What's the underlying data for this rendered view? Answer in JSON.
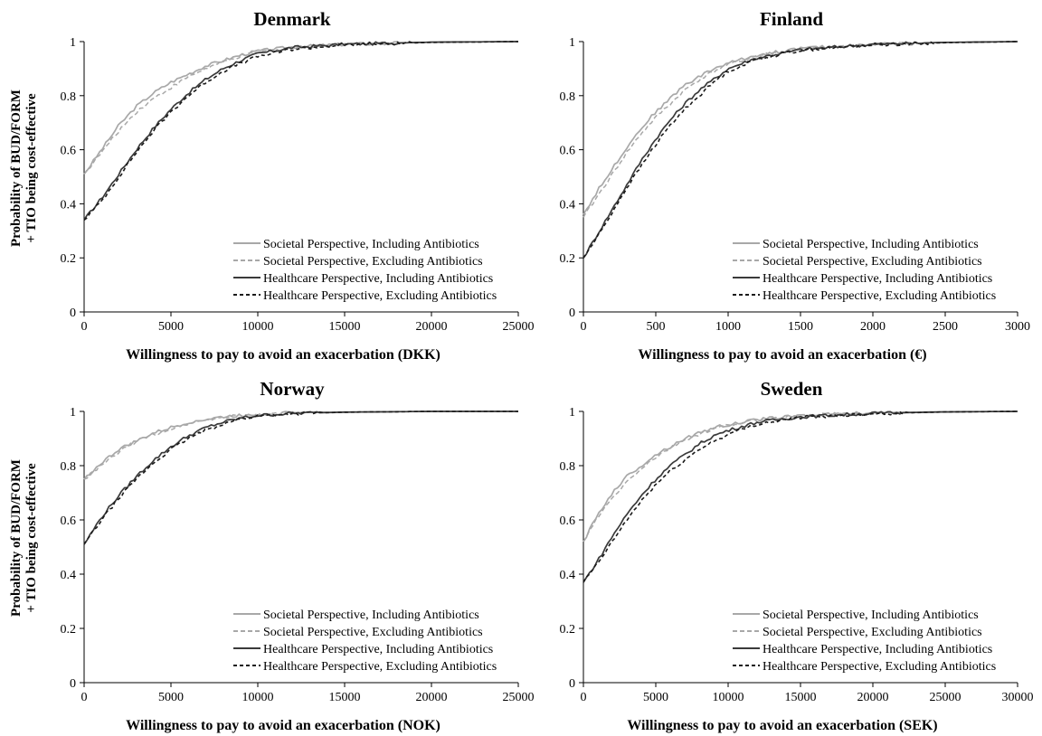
{
  "y_axis_title": {
    "line1": "Probability of BUD/FORM",
    "line2": "+ TIO being cost-effective"
  },
  "legend": [
    {
      "label": "Societal Perspective, Including Antibiotics",
      "color": "#a8a8a8",
      "dashed": false
    },
    {
      "label": "Societal Perspective, Excluding Antibiotics",
      "color": "#a8a8a8",
      "dashed": true
    },
    {
      "label": "Healthcare Perspective, Including Antibiotics",
      "color": "#3a3a3a",
      "dashed": false
    },
    {
      "label": "Healthcare Perspective, Excluding Antibiotics",
      "color": "#1a1a1a",
      "dashed": true
    }
  ],
  "chart_data": [
    {
      "type": "line",
      "title": "Denmark",
      "xlabel": "Willingness to pay to avoid an exacerbation (DKK)",
      "ylabel": "Probability of BUD/FORM + TIO being cost-effective",
      "xlim": [
        0,
        25000
      ],
      "ylim": [
        0,
        1
      ],
      "xticks": [
        0,
        5000,
        10000,
        15000,
        20000,
        25000
      ],
      "yticks": [
        0,
        0.2,
        0.4,
        0.6,
        0.8,
        1
      ],
      "ytick_labels": [
        "0",
        "0.2",
        "0.4",
        "0.6",
        "0.8",
        "1"
      ],
      "grid": false,
      "legend_position": "bottom-right",
      "x": [
        0,
        1000,
        2000,
        3000,
        4000,
        5000,
        6000,
        7000,
        8000,
        9000,
        10000,
        12000,
        15000,
        20000,
        25000
      ],
      "series": [
        {
          "name": "Societal Perspective, Including Antibiotics",
          "values": [
            0.51,
            0.6,
            0.69,
            0.76,
            0.81,
            0.85,
            0.88,
            0.91,
            0.93,
            0.95,
            0.965,
            0.98,
            0.99,
            0.998,
            1.0
          ]
        },
        {
          "name": "Societal Perspective, Excluding Antibiotics",
          "values": [
            0.51,
            0.59,
            0.67,
            0.74,
            0.79,
            0.83,
            0.87,
            0.9,
            0.925,
            0.945,
            0.96,
            0.978,
            0.99,
            0.998,
            1.0
          ]
        },
        {
          "name": "Healthcare Perspective, Including Antibiotics",
          "values": [
            0.34,
            0.42,
            0.51,
            0.6,
            0.68,
            0.75,
            0.81,
            0.86,
            0.9,
            0.93,
            0.955,
            0.978,
            0.99,
            0.998,
            1.0
          ]
        },
        {
          "name": "Healthcare Perspective, Excluding Antibiotics",
          "values": [
            0.34,
            0.41,
            0.5,
            0.59,
            0.67,
            0.74,
            0.8,
            0.85,
            0.89,
            0.92,
            0.945,
            0.972,
            0.988,
            0.997,
            1.0
          ]
        }
      ]
    },
    {
      "type": "line",
      "title": "Finland",
      "xlabel": "Willingness to pay to avoid an exacerbation (€)",
      "ylabel": "",
      "xlim": [
        0,
        3000
      ],
      "ylim": [
        0,
        1
      ],
      "xticks": [
        0,
        500,
        1000,
        1500,
        2000,
        2500,
        3000
      ],
      "yticks": [
        0,
        0.2,
        0.4,
        0.6,
        0.8,
        1
      ],
      "ytick_labels": [
        "0",
        "0.2",
        "0.4",
        "0.6",
        "0.8",
        "1"
      ],
      "grid": false,
      "legend_position": "bottom-right",
      "x": [
        0,
        100,
        200,
        300,
        400,
        500,
        600,
        700,
        800,
        900,
        1000,
        1200,
        1500,
        2000,
        2500,
        3000
      ],
      "series": [
        {
          "name": "Societal Perspective, Including Antibiotics",
          "values": [
            0.36,
            0.45,
            0.53,
            0.61,
            0.68,
            0.74,
            0.79,
            0.84,
            0.87,
            0.9,
            0.92,
            0.95,
            0.975,
            0.99,
            0.997,
            1.0
          ]
        },
        {
          "name": "Societal Perspective, Excluding Antibiotics",
          "values": [
            0.35,
            0.43,
            0.51,
            0.59,
            0.66,
            0.72,
            0.77,
            0.82,
            0.86,
            0.89,
            0.915,
            0.948,
            0.973,
            0.99,
            0.997,
            1.0
          ]
        },
        {
          "name": "Healthcare Perspective, Including Antibiotics",
          "values": [
            0.2,
            0.29,
            0.38,
            0.47,
            0.56,
            0.64,
            0.71,
            0.77,
            0.82,
            0.86,
            0.9,
            0.94,
            0.97,
            0.99,
            0.997,
            1.0
          ]
        },
        {
          "name": "Healthcare Perspective, Excluding Antibiotics",
          "values": [
            0.2,
            0.28,
            0.37,
            0.46,
            0.54,
            0.62,
            0.69,
            0.75,
            0.8,
            0.85,
            0.89,
            0.935,
            0.968,
            0.988,
            0.996,
            1.0
          ]
        }
      ]
    },
    {
      "type": "line",
      "title": "Norway",
      "xlabel": "Willingness to pay to avoid an exacerbation (NOK)",
      "ylabel": "Probability of BUD/FORM + TIO being cost-effective",
      "xlim": [
        0,
        25000
      ],
      "ylim": [
        0,
        1
      ],
      "xticks": [
        0,
        5000,
        10000,
        15000,
        20000,
        25000
      ],
      "yticks": [
        0,
        0.2,
        0.4,
        0.6,
        0.8,
        1
      ],
      "ytick_labels": [
        "0",
        "0.2",
        "0.4",
        "0.6",
        "0.8",
        "1"
      ],
      "grid": false,
      "legend_position": "bottom-right",
      "x": [
        0,
        1000,
        2000,
        3000,
        4000,
        5000,
        6000,
        7000,
        8000,
        9000,
        10000,
        12000,
        15000,
        20000,
        25000
      ],
      "series": [
        {
          "name": "Societal Perspective, Including Antibiotics",
          "values": [
            0.75,
            0.81,
            0.86,
            0.89,
            0.92,
            0.94,
            0.96,
            0.97,
            0.98,
            0.985,
            0.99,
            0.995,
            0.998,
            1.0,
            1.0
          ]
        },
        {
          "name": "Societal Perspective, Excluding Antibiotics",
          "values": [
            0.75,
            0.8,
            0.85,
            0.89,
            0.915,
            0.935,
            0.955,
            0.968,
            0.978,
            0.985,
            0.99,
            0.995,
            0.998,
            1.0,
            1.0
          ]
        },
        {
          "name": "Healthcare Perspective, Including Antibiotics",
          "values": [
            0.51,
            0.61,
            0.69,
            0.76,
            0.82,
            0.87,
            0.91,
            0.94,
            0.96,
            0.975,
            0.985,
            0.993,
            0.997,
            1.0,
            1.0
          ]
        },
        {
          "name": "Healthcare Perspective, Excluding Antibiotics",
          "values": [
            0.51,
            0.6,
            0.68,
            0.75,
            0.81,
            0.86,
            0.9,
            0.93,
            0.955,
            0.972,
            0.983,
            0.992,
            0.997,
            1.0,
            1.0
          ]
        }
      ]
    },
    {
      "type": "line",
      "title": "Sweden",
      "xlabel": "Willingness to pay to avoid an exacerbation (SEK)",
      "ylabel": "",
      "xlim": [
        0,
        30000
      ],
      "ylim": [
        0,
        1
      ],
      "xticks": [
        0,
        5000,
        10000,
        15000,
        20000,
        25000,
        30000
      ],
      "yticks": [
        0,
        0.2,
        0.4,
        0.6,
        0.8,
        1
      ],
      "ytick_labels": [
        "0",
        "0.2",
        "0.4",
        "0.6",
        "0.8",
        "1"
      ],
      "grid": false,
      "legend_position": "bottom-right",
      "x": [
        0,
        1000,
        2000,
        3000,
        4000,
        5000,
        6000,
        7000,
        8000,
        9000,
        10000,
        12000,
        15000,
        20000,
        25000,
        30000
      ],
      "series": [
        {
          "name": "Societal Perspective, Including Antibiotics",
          "values": [
            0.52,
            0.62,
            0.7,
            0.76,
            0.8,
            0.84,
            0.87,
            0.9,
            0.92,
            0.94,
            0.95,
            0.97,
            0.985,
            0.995,
            0.999,
            1.0
          ]
        },
        {
          "name": "Societal Perspective, Excluding Antibiotics",
          "values": [
            0.52,
            0.61,
            0.68,
            0.74,
            0.79,
            0.83,
            0.865,
            0.895,
            0.915,
            0.935,
            0.948,
            0.968,
            0.984,
            0.995,
            0.999,
            1.0
          ]
        },
        {
          "name": "Healthcare Perspective, Including Antibiotics",
          "values": [
            0.37,
            0.45,
            0.54,
            0.62,
            0.69,
            0.75,
            0.8,
            0.84,
            0.88,
            0.91,
            0.93,
            0.96,
            0.98,
            0.993,
            0.998,
            1.0
          ]
        },
        {
          "name": "Healthcare Perspective, Excluding Antibiotics",
          "values": [
            0.37,
            0.44,
            0.52,
            0.6,
            0.67,
            0.73,
            0.78,
            0.82,
            0.86,
            0.89,
            0.915,
            0.953,
            0.978,
            0.992,
            0.998,
            1.0
          ]
        }
      ]
    }
  ]
}
